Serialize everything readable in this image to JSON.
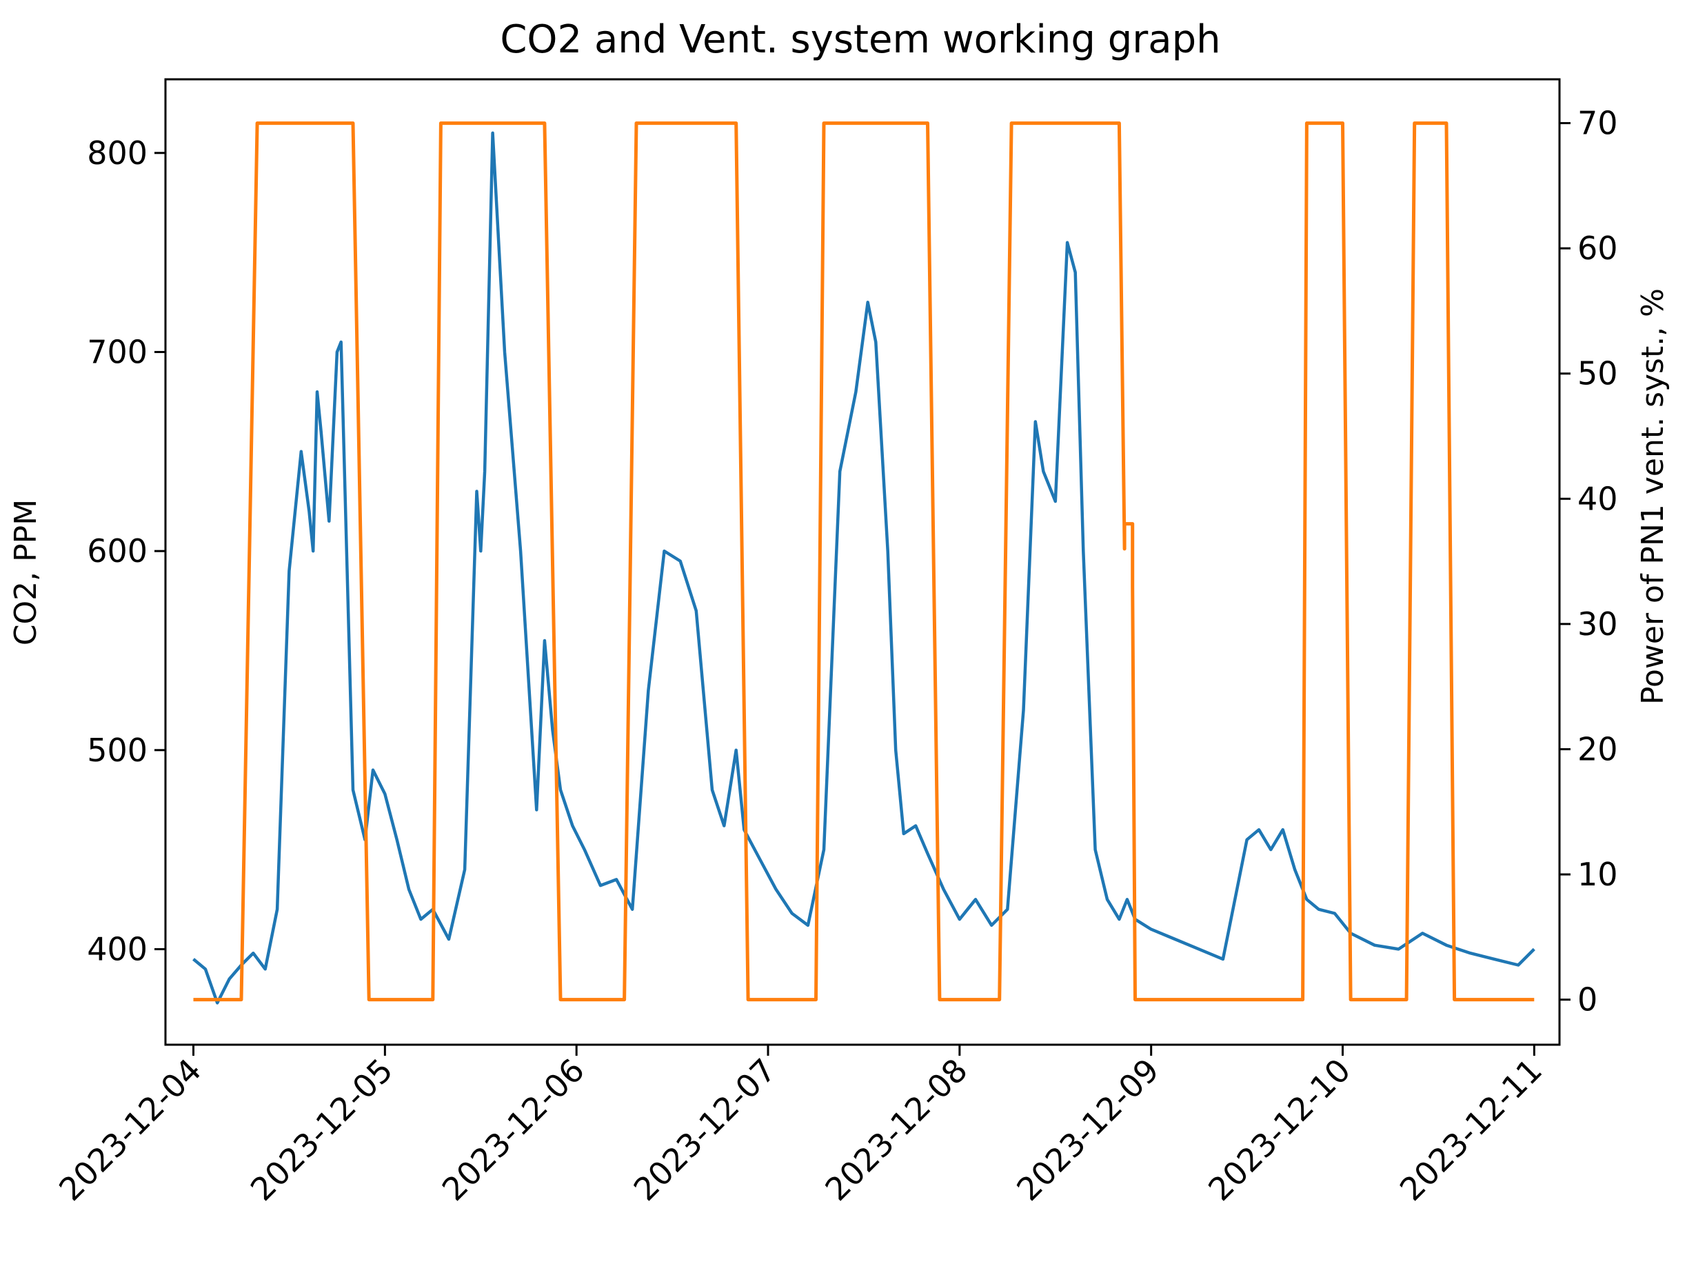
{
  "chart_data": {
    "type": "line",
    "title": "CO2 and Vent. system working graph",
    "xlabel": "",
    "ylabel": "CO2, PPM",
    "y2label": "Power of PN1 vent. syst., %",
    "x_tick_labels": [
      "2023-12-04",
      "2023-12-05",
      "2023-12-06",
      "2023-12-07",
      "2023-12-08",
      "2023-12-09",
      "2023-12-10",
      "2023-12-11"
    ],
    "xlim": [
      "2023-12-03T20:30",
      "2023-12-11T03:10"
    ],
    "ylim": [
      352,
      837
    ],
    "y_ticks": [
      400,
      500,
      600,
      700,
      800
    ],
    "y2lim": [
      -3.6,
      73.5
    ],
    "y2_ticks": [
      0,
      10,
      20,
      30,
      40,
      50,
      60,
      70
    ],
    "grid": false,
    "series": [
      {
        "axis": "left",
        "color": "#1f77b4",
        "x": [
          "2023-12-04T00:00",
          "2023-12-04T01:30",
          "2023-12-04T03:00",
          "2023-12-04T04:30",
          "2023-12-04T06:00",
          "2023-12-04T07:30",
          "2023-12-04T09:00",
          "2023-12-04T10:30",
          "2023-12-04T12:00",
          "2023-12-04T13:30",
          "2023-12-04T14:30",
          "2023-12-04T15:00",
          "2023-12-04T15:30",
          "2023-12-04T16:00",
          "2023-12-04T17:00",
          "2023-12-04T18:00",
          "2023-12-04T18:30",
          "2023-12-04T20:00",
          "2023-12-04T21:30",
          "2023-12-04T22:30",
          "2023-12-05T00:00",
          "2023-12-05T01:30",
          "2023-12-05T03:00",
          "2023-12-05T04:30",
          "2023-12-05T06:00",
          "2023-12-05T08:00",
          "2023-12-05T10:00",
          "2023-12-05T11:30",
          "2023-12-05T12:00",
          "2023-12-05T12:30",
          "2023-12-05T13:30",
          "2023-12-05T15:00",
          "2023-12-05T17:00",
          "2023-12-05T19:00",
          "2023-12-05T20:00",
          "2023-12-05T21:00",
          "2023-12-05T22:00",
          "2023-12-05T23:30",
          "2023-12-06T01:00",
          "2023-12-06T03:00",
          "2023-12-06T05:00",
          "2023-12-06T07:00",
          "2023-12-06T09:00",
          "2023-12-06T11:00",
          "2023-12-06T13:00",
          "2023-12-06T15:00",
          "2023-12-06T17:00",
          "2023-12-06T18:30",
          "2023-12-06T20:00",
          "2023-12-06T21:00",
          "2023-12-06T23:00",
          "2023-12-07T01:00",
          "2023-12-07T03:00",
          "2023-12-07T05:00",
          "2023-12-07T07:00",
          "2023-12-07T09:00",
          "2023-12-07T11:00",
          "2023-12-07T12:30",
          "2023-12-07T13:30",
          "2023-12-07T15:00",
          "2023-12-07T16:00",
          "2023-12-07T17:00",
          "2023-12-07T18:30",
          "2023-12-07T20:00",
          "2023-12-07T22:00",
          "2023-12-08T00:00",
          "2023-12-08T02:00",
          "2023-12-08T04:00",
          "2023-12-08T06:00",
          "2023-12-08T08:00",
          "2023-12-08T09:30",
          "2023-12-08T10:30",
          "2023-12-08T12:00",
          "2023-12-08T13:30",
          "2023-12-08T14:30",
          "2023-12-08T15:30",
          "2023-12-08T17:00",
          "2023-12-08T18:30",
          "2023-12-08T20:00",
          "2023-12-08T21:00",
          "2023-12-08T22:00",
          "2023-12-09T00:00",
          "2023-12-09T03:00",
          "2023-12-09T06:00",
          "2023-12-09T09:00",
          "2023-12-09T12:00",
          "2023-12-09T13:30",
          "2023-12-09T15:00",
          "2023-12-09T16:30",
          "2023-12-09T18:00",
          "2023-12-09T19:30",
          "2023-12-09T21:00",
          "2023-12-09T23:00",
          "2023-12-10T01:00",
          "2023-12-10T04:00",
          "2023-12-10T07:00",
          "2023-12-10T10:00",
          "2023-12-10T13:00",
          "2023-12-10T16:00",
          "2023-12-10T19:00",
          "2023-12-10T22:00",
          "2023-12-11T00:00"
        ],
        "values": [
          395,
          390,
          373,
          385,
          392,
          398,
          390,
          420,
          590,
          650,
          620,
          600,
          680,
          660,
          615,
          700,
          705,
          480,
          455,
          490,
          478,
          455,
          430,
          415,
          420,
          405,
          440,
          630,
          600,
          640,
          810,
          700,
          600,
          470,
          555,
          510,
          480,
          462,
          450,
          432,
          435,
          420,
          530,
          600,
          595,
          570,
          480,
          462,
          500,
          460,
          445,
          430,
          418,
          412,
          450,
          640,
          680,
          725,
          705,
          600,
          500,
          458,
          462,
          448,
          430,
          415,
          425,
          412,
          420,
          520,
          665,
          640,
          625,
          755,
          740,
          600,
          450,
          425,
          415,
          425,
          415,
          410,
          405,
          400,
          395,
          455,
          460,
          450,
          460,
          440,
          425,
          420,
          418,
          408,
          402,
          400,
          408,
          402,
          398,
          395,
          392,
          400
        ]
      },
      {
        "axis": "right",
        "color": "#ff7f0e",
        "x": [
          "2023-12-04T00:00",
          "2023-12-04T06:00",
          "2023-12-04T08:00",
          "2023-12-04T20:00",
          "2023-12-04T22:00",
          "2023-12-05T06:00",
          "2023-12-05T07:00",
          "2023-12-05T20:00",
          "2023-12-05T22:00",
          "2023-12-06T06:00",
          "2023-12-06T07:30",
          "2023-12-06T20:00",
          "2023-12-06T21:30",
          "2023-12-07T06:00",
          "2023-12-07T07:00",
          "2023-12-07T20:00",
          "2023-12-07T21:30",
          "2023-12-08T05:00",
          "2023-12-08T06:30",
          "2023-12-08T20:00",
          "2023-12-08T20:40",
          "2023-12-08T20:40",
          "2023-12-08T21:40",
          "2023-12-08T21:40",
          "2023-12-08T22:00",
          "2023-12-09T03:00",
          "2023-12-09T03:00",
          "2023-12-09T19:00",
          "2023-12-09T19:30",
          "2023-12-10T00:00",
          "2023-12-10T01:00",
          "2023-12-10T08:00",
          "2023-12-10T09:00",
          "2023-12-10T13:00",
          "2023-12-10T14:00",
          "2023-12-11T00:00"
        ],
        "values": [
          0,
          0,
          70,
          70,
          0,
          0,
          70,
          70,
          0,
          0,
          70,
          70,
          0,
          0,
          70,
          70,
          0,
          0,
          70,
          70,
          36,
          38,
          38,
          33,
          0,
          0,
          0,
          0,
          70,
          70,
          0,
          0,
          70,
          70,
          0,
          0
        ]
      }
    ]
  }
}
